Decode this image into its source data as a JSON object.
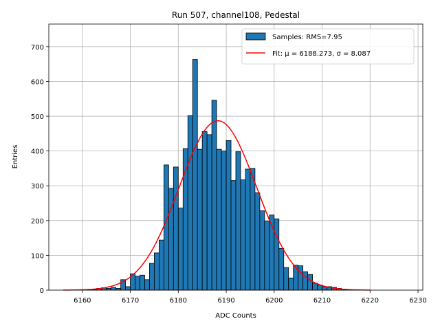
{
  "chart_data": {
    "type": "bar",
    "title": "Run 507, channel108, Pedestal",
    "xlabel": "ADC Counts",
    "ylabel": "Entries",
    "xlim": [
      6153,
      6231
    ],
    "ylim": [
      0,
      765
    ],
    "xticks": [
      6160,
      6170,
      6180,
      6190,
      6200,
      6210,
      6220,
      6230
    ],
    "yticks": [
      0,
      100,
      200,
      300,
      400,
      500,
      600,
      700
    ],
    "grid": true,
    "legend_position": "top-right",
    "histogram": {
      "name": "Samples: RMS=7.95",
      "color": "#1f77b4",
      "bin_width": 1,
      "bin_starts": [
        6161,
        6162,
        6163,
        6164,
        6165,
        6166,
        6167,
        6168,
        6169,
        6170,
        6171,
        6172,
        6173,
        6174,
        6175,
        6176,
        6177,
        6178,
        6179,
        6180,
        6181,
        6182,
        6183,
        6184,
        6185,
        6186,
        6187,
        6188,
        6189,
        6190,
        6191,
        6192,
        6193,
        6194,
        6195,
        6196,
        6197,
        6198,
        6199,
        6200,
        6201,
        6202,
        6203,
        6204,
        6205,
        6206,
        6207,
        6208,
        6209,
        6210,
        6211,
        6212,
        6213,
        6214,
        6215,
        6216,
        6217
      ],
      "values": [
        1,
        2,
        5,
        7,
        5,
        8,
        5,
        30,
        10,
        47,
        40,
        43,
        30,
        77,
        107,
        144,
        360,
        293,
        354,
        236,
        407,
        502,
        663,
        405,
        456,
        447,
        546,
        405,
        400,
        430,
        315,
        398,
        317,
        348,
        350,
        280,
        228,
        198,
        216,
        205,
        120,
        65,
        35,
        72,
        70,
        53,
        45,
        20,
        15,
        10,
        10,
        8,
        5,
        3,
        2,
        1,
        1
      ]
    },
    "fit": {
      "name": "Fit: μ = 6188.273, σ = 8.087",
      "color": "#ff0000",
      "mu": 6188.273,
      "sigma": 8.087,
      "amplitude": 487,
      "x_range": [
        6156,
        6220
      ]
    }
  }
}
